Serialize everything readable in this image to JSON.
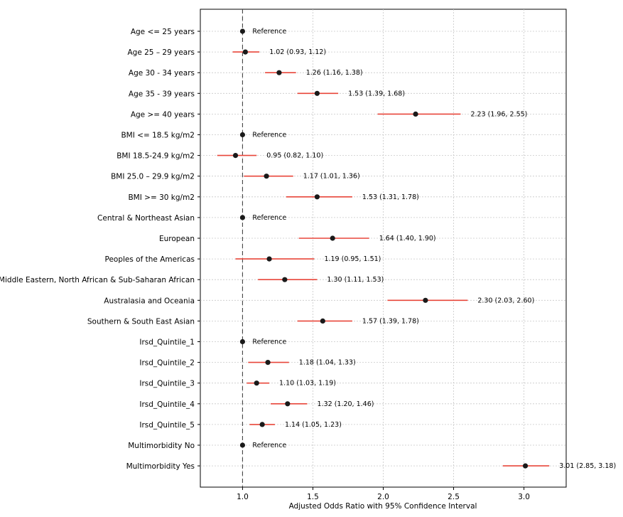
{
  "chart_data": {
    "type": "scatter",
    "subtype": "forest-plot",
    "xlabel": "Adjusted Odds Ratio with 95% Confidence Interval",
    "ylabel": "",
    "title": "",
    "xlim": [
      0.7,
      3.3
    ],
    "xticks": [
      1.0,
      1.5,
      2.0,
      2.5,
      3.0
    ],
    "xtick_labels": [
      "1.0",
      "1.5",
      "2.0",
      "2.5",
      "3.0"
    ],
    "reference_line": 1.0,
    "grid": true,
    "point_color": "#1a1a1a",
    "ci_color": "#e8463a",
    "rows": [
      {
        "label": "Age <= 25 years",
        "or": 1.0,
        "lo": 1.0,
        "hi": 1.0,
        "annotation": "Reference"
      },
      {
        "label": "Age 25 – 29 years",
        "or": 1.02,
        "lo": 0.93,
        "hi": 1.12,
        "annotation": "1.02 (0.93, 1.12)"
      },
      {
        "label": "Age 30 - 34 years",
        "or": 1.26,
        "lo": 1.16,
        "hi": 1.38,
        "annotation": "1.26 (1.16, 1.38)"
      },
      {
        "label": "Age 35 - 39 years",
        "or": 1.53,
        "lo": 1.39,
        "hi": 1.68,
        "annotation": "1.53 (1.39, 1.68)"
      },
      {
        "label": "Age >= 40 years",
        "or": 2.23,
        "lo": 1.96,
        "hi": 2.55,
        "annotation": "2.23 (1.96, 2.55)"
      },
      {
        "label": "BMI <= 18.5 kg/m2",
        "or": 1.0,
        "lo": 1.0,
        "hi": 1.0,
        "annotation": "Reference"
      },
      {
        "label": "BMI 18.5-24.9 kg/m2",
        "or": 0.95,
        "lo": 0.82,
        "hi": 1.1,
        "annotation": "0.95 (0.82, 1.10)"
      },
      {
        "label": "BMI 25.0 – 29.9 kg/m2",
        "or": 1.17,
        "lo": 1.01,
        "hi": 1.36,
        "annotation": "1.17 (1.01, 1.36)"
      },
      {
        "label": "BMI >= 30 kg/m2",
        "or": 1.53,
        "lo": 1.31,
        "hi": 1.78,
        "annotation": "1.53 (1.31, 1.78)"
      },
      {
        "label": "Central & Northeast Asian",
        "or": 1.0,
        "lo": 1.0,
        "hi": 1.0,
        "annotation": "Reference"
      },
      {
        "label": "European",
        "or": 1.64,
        "lo": 1.4,
        "hi": 1.9,
        "annotation": "1.64 (1.40, 1.90)"
      },
      {
        "label": "Peoples of the Americas",
        "or": 1.19,
        "lo": 0.95,
        "hi": 1.51,
        "annotation": "1.19 (0.95, 1.51)"
      },
      {
        "label": "Middle Eastern, North African & Sub-Saharan African",
        "or": 1.3,
        "lo": 1.11,
        "hi": 1.53,
        "annotation": "1.30 (1.11, 1.53)"
      },
      {
        "label": "Australasia and Oceania",
        "or": 2.3,
        "lo": 2.03,
        "hi": 2.6,
        "annotation": "2.30 (2.03, 2.60)"
      },
      {
        "label": "Southern & South East Asian",
        "or": 1.57,
        "lo": 1.39,
        "hi": 1.78,
        "annotation": "1.57 (1.39, 1.78)"
      },
      {
        "label": "Irsd_Quintile_1",
        "or": 1.0,
        "lo": 1.0,
        "hi": 1.0,
        "annotation": "Reference"
      },
      {
        "label": "Irsd_Quintile_2",
        "or": 1.18,
        "lo": 1.04,
        "hi": 1.33,
        "annotation": "1.18 (1.04, 1.33)"
      },
      {
        "label": "Irsd_Quintile_3",
        "or": 1.1,
        "lo": 1.03,
        "hi": 1.19,
        "annotation": "1.10 (1.03, 1.19)"
      },
      {
        "label": "Irsd_Quintile_4",
        "or": 1.32,
        "lo": 1.2,
        "hi": 1.46,
        "annotation": "1.32 (1.20, 1.46)"
      },
      {
        "label": "Irsd_Quintile_5",
        "or": 1.14,
        "lo": 1.05,
        "hi": 1.23,
        "annotation": "1.14 (1.05, 1.23)"
      },
      {
        "label": "Multimorbidity No",
        "or": 1.0,
        "lo": 1.0,
        "hi": 1.0,
        "annotation": "Reference"
      },
      {
        "label": "Multimorbidity Yes",
        "or": 3.01,
        "lo": 2.85,
        "hi": 3.18,
        "annotation": "3.01 (2.85, 3.18)"
      }
    ]
  }
}
